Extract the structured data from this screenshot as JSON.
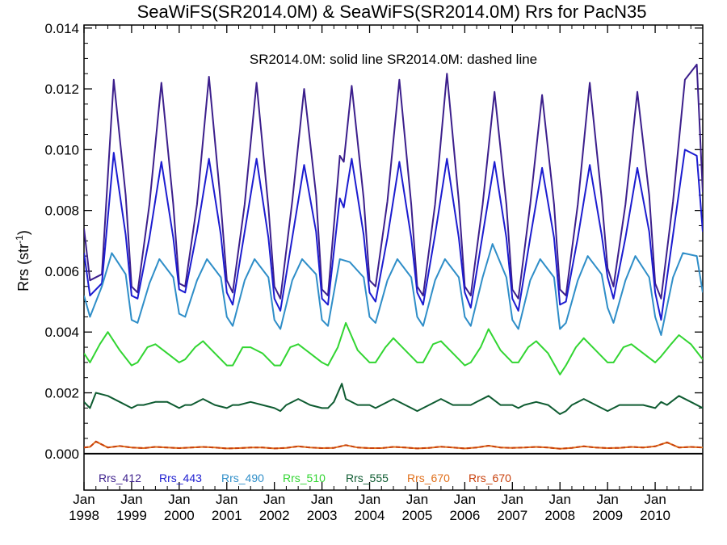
{
  "chart_data": {
    "type": "line",
    "title": "SeaWiFS(SR2014.0M) & SeaWiFS(SR2014.0M)  Rrs for PacN35",
    "note": "SR2014.0M: solid line   SR2014.0M: dashed line",
    "ylabel_main": "Rrs (str",
    "ylabel_sup": "-1",
    "ylabel_end": ")",
    "xlabel": "",
    "ylim": [
      -0.0012,
      0.0141
    ],
    "xlim": [
      1998.0,
      2011.0
    ],
    "y_ticks": [
      {
        "value": 0.0,
        "label": "0.000"
      },
      {
        "value": 0.002,
        "label": "0.002"
      },
      {
        "value": 0.004,
        "label": "0.004"
      },
      {
        "value": 0.006,
        "label": "0.006"
      },
      {
        "value": 0.008,
        "label": "0.008"
      },
      {
        "value": 0.01,
        "label": "0.010"
      },
      {
        "value": 0.012,
        "label": "0.012"
      },
      {
        "value": 0.014,
        "label": "0.014"
      }
    ],
    "x_ticks": [
      {
        "value": 1998,
        "month": "Jan",
        "year": "1998"
      },
      {
        "value": 1999,
        "month": "Jan",
        "year": "1999"
      },
      {
        "value": 2000,
        "month": "Jan",
        "year": "2000"
      },
      {
        "value": 2001,
        "month": "Jan",
        "year": "2001"
      },
      {
        "value": 2002,
        "month": "Jan",
        "year": "2002"
      },
      {
        "value": 2003,
        "month": "Jan",
        "year": "2003"
      },
      {
        "value": 2004,
        "month": "Jan",
        "year": "2004"
      },
      {
        "value": 2005,
        "month": "Jan",
        "year": "2005"
      },
      {
        "value": 2006,
        "month": "Jan",
        "year": "2006"
      },
      {
        "value": 2007,
        "month": "Jan",
        "year": "2007"
      },
      {
        "value": 2008,
        "month": "Jan",
        "year": "2008"
      },
      {
        "value": 2009,
        "month": "Jan",
        "year": "2009"
      },
      {
        "value": 2010,
        "month": "Jan",
        "year": "2010"
      }
    ],
    "grid": false,
    "legend_position": "bottom-left",
    "zero_line": true,
    "series": [
      {
        "name": "Rrs_412",
        "color": "#3c1f8c",
        "style": "solid",
        "x": [
          1998.0,
          1998.125,
          1998.375,
          1998.625,
          1998.875,
          1999.0,
          1999.125,
          1999.375,
          1999.625,
          1999.875,
          2000.0,
          2000.125,
          2000.375,
          2000.625,
          2000.875,
          2001.0,
          2001.125,
          2001.375,
          2001.625,
          2001.875,
          2002.0,
          2002.125,
          2002.375,
          2002.625,
          2002.875,
          2003.0,
          2003.125,
          2003.375,
          2003.458,
          2003.625,
          2003.875,
          2004.0,
          2004.125,
          2004.375,
          2004.625,
          2004.875,
          2005.0,
          2005.125,
          2005.375,
          2005.625,
          2005.875,
          2006.0,
          2006.125,
          2006.375,
          2006.625,
          2006.875,
          2007.0,
          2007.125,
          2007.375,
          2007.625,
          2007.875,
          2008.0,
          2008.125,
          2008.375,
          2008.625,
          2008.875,
          2009.0,
          2009.125,
          2009.375,
          2009.625,
          2009.875,
          2010.0,
          2010.125,
          2010.375,
          2010.625,
          2010.875,
          2011.0
        ],
        "y": [
          0.0074,
          0.0057,
          0.0059,
          0.0123,
          0.0085,
          0.0055,
          0.0053,
          0.0082,
          0.0122,
          0.0082,
          0.0056,
          0.0055,
          0.0082,
          0.0124,
          0.0082,
          0.0057,
          0.0053,
          0.0082,
          0.0122,
          0.0081,
          0.0055,
          0.0051,
          0.0083,
          0.012,
          0.0085,
          0.0054,
          0.0052,
          0.0098,
          0.0096,
          0.0121,
          0.0084,
          0.0057,
          0.0055,
          0.0083,
          0.0123,
          0.0082,
          0.0055,
          0.0052,
          0.0082,
          0.0125,
          0.0083,
          0.0055,
          0.0052,
          0.0082,
          0.0119,
          0.0082,
          0.0054,
          0.0051,
          0.0082,
          0.0118,
          0.0082,
          0.0054,
          0.0052,
          0.0082,
          0.0122,
          0.0084,
          0.0061,
          0.0055,
          0.0082,
          0.0119,
          0.0085,
          0.0056,
          0.0051,
          0.0083,
          0.0123,
          0.0128,
          0.0086
        ]
      },
      {
        "name": "Rrs_443",
        "color": "#1c1cd0",
        "style": "solid",
        "x": [
          1998.0,
          1998.125,
          1998.375,
          1998.625,
          1998.875,
          1999.0,
          1999.125,
          1999.375,
          1999.625,
          1999.875,
          2000.0,
          2000.125,
          2000.375,
          2000.625,
          2000.875,
          2001.0,
          2001.125,
          2001.375,
          2001.625,
          2001.875,
          2002.0,
          2002.125,
          2002.375,
          2002.625,
          2002.875,
          2003.0,
          2003.125,
          2003.375,
          2003.458,
          2003.625,
          2003.875,
          2004.0,
          2004.125,
          2004.375,
          2004.625,
          2004.875,
          2005.0,
          2005.125,
          2005.375,
          2005.625,
          2005.875,
          2006.0,
          2006.125,
          2006.375,
          2006.625,
          2006.875,
          2007.0,
          2007.125,
          2007.375,
          2007.625,
          2007.875,
          2008.0,
          2008.125,
          2008.375,
          2008.625,
          2008.875,
          2009.0,
          2009.125,
          2009.375,
          2009.625,
          2009.875,
          2010.0,
          2010.125,
          2010.375,
          2010.625,
          2010.875,
          2011.0
        ],
        "y": [
          0.0066,
          0.0052,
          0.0056,
          0.0099,
          0.0072,
          0.0052,
          0.0051,
          0.0071,
          0.0096,
          0.0071,
          0.0054,
          0.0053,
          0.0073,
          0.0097,
          0.0072,
          0.0053,
          0.0049,
          0.0073,
          0.0097,
          0.0071,
          0.0051,
          0.0047,
          0.0071,
          0.0095,
          0.0073,
          0.0051,
          0.0049,
          0.0084,
          0.0081,
          0.0097,
          0.0072,
          0.0053,
          0.005,
          0.0071,
          0.0096,
          0.0071,
          0.0053,
          0.0049,
          0.0072,
          0.0097,
          0.0071,
          0.0053,
          0.0048,
          0.0072,
          0.0096,
          0.0071,
          0.0051,
          0.0047,
          0.0071,
          0.0094,
          0.0071,
          0.0049,
          0.005,
          0.0071,
          0.0095,
          0.0072,
          0.0058,
          0.0051,
          0.0071,
          0.0094,
          0.0073,
          0.0053,
          0.0044,
          0.0072,
          0.01,
          0.0098,
          0.0073
        ]
      },
      {
        "name": "Rrs_490",
        "color": "#2f8ec8",
        "style": "solid",
        "x": [
          1998.0,
          1998.125,
          1998.375,
          1998.583,
          1998.875,
          1999.0,
          1999.125,
          1999.375,
          1999.583,
          1999.875,
          2000.0,
          2000.125,
          2000.375,
          2000.583,
          2000.875,
          2001.0,
          2001.125,
          2001.375,
          2001.583,
          2001.875,
          2002.0,
          2002.125,
          2002.375,
          2002.583,
          2002.875,
          2003.0,
          2003.125,
          2003.375,
          2003.583,
          2003.875,
          2004.0,
          2004.125,
          2004.375,
          2004.583,
          2004.875,
          2005.0,
          2005.125,
          2005.375,
          2005.583,
          2005.875,
          2006.0,
          2006.125,
          2006.375,
          2006.583,
          2006.875,
          2007.0,
          2007.125,
          2007.375,
          2007.583,
          2007.875,
          2008.0,
          2008.125,
          2008.375,
          2008.583,
          2008.875,
          2009.0,
          2009.125,
          2009.375,
          2009.583,
          2009.875,
          2010.0,
          2010.125,
          2010.375,
          2010.583,
          2010.875,
          2011.0
        ],
        "y": [
          0.0052,
          0.0045,
          0.0055,
          0.0066,
          0.0059,
          0.0044,
          0.0043,
          0.0056,
          0.0064,
          0.0058,
          0.0046,
          0.0045,
          0.0057,
          0.0064,
          0.0058,
          0.0045,
          0.0042,
          0.0057,
          0.0064,
          0.0058,
          0.0044,
          0.0041,
          0.0057,
          0.0064,
          0.0059,
          0.0044,
          0.0042,
          0.0064,
          0.0063,
          0.0058,
          0.0045,
          0.0043,
          0.0057,
          0.0064,
          0.0058,
          0.0045,
          0.0042,
          0.0057,
          0.0064,
          0.0058,
          0.0045,
          0.0042,
          0.0058,
          0.0069,
          0.0058,
          0.0044,
          0.0041,
          0.0057,
          0.0064,
          0.0058,
          0.0041,
          0.0043,
          0.0057,
          0.0065,
          0.0059,
          0.0048,
          0.0043,
          0.0057,
          0.0065,
          0.0058,
          0.0045,
          0.0039,
          0.0058,
          0.0066,
          0.0065,
          0.0053
        ]
      },
      {
        "name": "Rrs_510",
        "color": "#32d532",
        "style": "solid",
        "x": [
          1998.0,
          1998.125,
          1998.333,
          1998.5,
          1998.75,
          1999.0,
          1999.125,
          1999.333,
          1999.5,
          1999.75,
          2000.0,
          2000.125,
          2000.333,
          2000.5,
          2000.75,
          2001.0,
          2001.125,
          2001.333,
          2001.5,
          2001.75,
          2002.0,
          2002.125,
          2002.333,
          2002.5,
          2002.75,
          2003.0,
          2003.125,
          2003.333,
          2003.5,
          2003.75,
          2004.0,
          2004.125,
          2004.333,
          2004.5,
          2004.75,
          2005.0,
          2005.125,
          2005.333,
          2005.5,
          2005.75,
          2006.0,
          2006.125,
          2006.333,
          2006.5,
          2006.75,
          2007.0,
          2007.125,
          2007.333,
          2007.5,
          2007.75,
          2008.0,
          2008.125,
          2008.333,
          2008.5,
          2008.75,
          2009.0,
          2009.125,
          2009.333,
          2009.5,
          2009.75,
          2010.0,
          2010.125,
          2010.333,
          2010.5,
          2010.75,
          2011.0
        ],
        "y": [
          0.0033,
          0.003,
          0.0036,
          0.004,
          0.0034,
          0.0029,
          0.003,
          0.0035,
          0.0036,
          0.0033,
          0.003,
          0.0031,
          0.0035,
          0.0037,
          0.0033,
          0.0029,
          0.0029,
          0.0035,
          0.0035,
          0.0033,
          0.0029,
          0.0029,
          0.0035,
          0.0036,
          0.0033,
          0.003,
          0.0029,
          0.0035,
          0.0043,
          0.0034,
          0.003,
          0.003,
          0.0035,
          0.0038,
          0.0034,
          0.003,
          0.003,
          0.0036,
          0.0037,
          0.0033,
          0.0029,
          0.003,
          0.0035,
          0.0041,
          0.0034,
          0.003,
          0.003,
          0.0035,
          0.0037,
          0.0033,
          0.0026,
          0.0029,
          0.0035,
          0.0038,
          0.0034,
          0.003,
          0.003,
          0.0035,
          0.0036,
          0.0033,
          0.003,
          0.0032,
          0.0036,
          0.0039,
          0.0036,
          0.0031
        ]
      },
      {
        "name": "Rrs_555",
        "color": "#0f5c32",
        "style": "solid",
        "x": [
          1998.0,
          1998.125,
          1998.25,
          1998.5,
          1998.75,
          1999.0,
          1999.125,
          1999.25,
          1999.5,
          1999.75,
          2000.0,
          2000.125,
          2000.25,
          2000.5,
          2000.75,
          2001.0,
          2001.125,
          2001.25,
          2001.5,
          2001.75,
          2002.0,
          2002.125,
          2002.25,
          2002.5,
          2002.75,
          2003.0,
          2003.125,
          2003.25,
          2003.417,
          2003.5,
          2003.75,
          2004.0,
          2004.125,
          2004.25,
          2004.5,
          2004.75,
          2005.0,
          2005.125,
          2005.25,
          2005.5,
          2005.75,
          2006.0,
          2006.125,
          2006.25,
          2006.5,
          2006.75,
          2007.0,
          2007.125,
          2007.25,
          2007.5,
          2007.75,
          2008.0,
          2008.125,
          2008.25,
          2008.5,
          2008.75,
          2009.0,
          2009.125,
          2009.25,
          2009.5,
          2009.75,
          2010.0,
          2010.125,
          2010.25,
          2010.5,
          2010.75,
          2011.0
        ],
        "y": [
          0.0017,
          0.0015,
          0.002,
          0.0019,
          0.0017,
          0.0015,
          0.0016,
          0.0016,
          0.0017,
          0.0017,
          0.0015,
          0.0016,
          0.0016,
          0.0018,
          0.0016,
          0.0015,
          0.0016,
          0.0016,
          0.0017,
          0.0016,
          0.0015,
          0.0014,
          0.0016,
          0.0018,
          0.0016,
          0.0015,
          0.0015,
          0.0017,
          0.0023,
          0.0018,
          0.0016,
          0.0016,
          0.0015,
          0.0016,
          0.0018,
          0.0016,
          0.0014,
          0.0015,
          0.0016,
          0.0018,
          0.0016,
          0.0016,
          0.0016,
          0.0017,
          0.0019,
          0.0016,
          0.0016,
          0.0015,
          0.0016,
          0.0017,
          0.0016,
          0.0013,
          0.0014,
          0.0016,
          0.0018,
          0.0016,
          0.0014,
          0.0015,
          0.0016,
          0.0016,
          0.0016,
          0.0015,
          0.0017,
          0.0016,
          0.0019,
          0.0017,
          0.0015
        ]
      },
      {
        "name": "Rrs_670",
        "color": "#e0701c",
        "style": "solid",
        "x": [
          1998.0,
          1998.125,
          1998.25,
          1998.5,
          1998.75,
          1999.0,
          1999.25,
          1999.5,
          1999.75,
          2000.0,
          2000.25,
          2000.5,
          2000.75,
          2001.0,
          2001.25,
          2001.5,
          2001.75,
          2002.0,
          2002.25,
          2002.5,
          2002.75,
          2003.0,
          2003.25,
          2003.5,
          2003.75,
          2004.0,
          2004.25,
          2004.5,
          2004.75,
          2005.0,
          2005.25,
          2005.5,
          2005.75,
          2006.0,
          2006.25,
          2006.5,
          2006.75,
          2007.0,
          2007.25,
          2007.5,
          2007.75,
          2008.0,
          2008.25,
          2008.5,
          2008.75,
          2009.0,
          2009.25,
          2009.5,
          2009.75,
          2010.0,
          2010.25,
          2010.5,
          2010.75,
          2011.0
        ],
        "y": [
          0.0002,
          0.00022,
          0.0004,
          0.0002,
          0.00025,
          0.0002,
          0.00018,
          0.00022,
          0.0002,
          0.00018,
          0.0002,
          0.00022,
          0.0002,
          0.00017,
          0.00018,
          0.0002,
          0.0002,
          0.00017,
          0.00019,
          0.00024,
          0.0002,
          0.00018,
          0.00019,
          0.00028,
          0.0002,
          0.00018,
          0.00018,
          0.00022,
          0.0002,
          0.00017,
          0.00019,
          0.00023,
          0.0002,
          0.00017,
          0.0002,
          0.00026,
          0.0002,
          0.00019,
          0.0002,
          0.00022,
          0.0002,
          0.00016,
          0.00019,
          0.00024,
          0.0002,
          0.00018,
          0.00019,
          0.00022,
          0.0002,
          0.00024,
          0.00037,
          0.0002,
          0.00022,
          0.0002
        ]
      },
      {
        "name": "Rrs_670",
        "color": "#c8400c",
        "style": "dashed",
        "x": [
          1998.0,
          1998.125,
          1998.25,
          1998.5,
          1998.75,
          1999.0,
          1999.25,
          1999.5,
          1999.75,
          2000.0,
          2000.25,
          2000.5,
          2000.75,
          2001.0,
          2001.25,
          2001.5,
          2001.75,
          2002.0,
          2002.25,
          2002.5,
          2002.75,
          2003.0,
          2003.25,
          2003.5,
          2003.75,
          2004.0,
          2004.25,
          2004.5,
          2004.75,
          2005.0,
          2005.25,
          2005.5,
          2005.75,
          2006.0,
          2006.25,
          2006.5,
          2006.75,
          2007.0,
          2007.25,
          2007.5,
          2007.75,
          2008.0,
          2008.25,
          2008.5,
          2008.75,
          2009.0,
          2009.25,
          2009.5,
          2009.75,
          2010.0,
          2010.25,
          2010.5,
          2010.75,
          2011.0
        ],
        "y": [
          0.0002,
          0.00022,
          0.0004,
          0.0002,
          0.00025,
          0.0002,
          0.00018,
          0.00022,
          0.0002,
          0.00018,
          0.0002,
          0.00022,
          0.0002,
          0.00017,
          0.00018,
          0.0002,
          0.0002,
          0.00017,
          0.00019,
          0.00024,
          0.0002,
          0.00018,
          0.00019,
          0.00028,
          0.0002,
          0.00018,
          0.00018,
          0.00022,
          0.0002,
          0.00017,
          0.00019,
          0.00023,
          0.0002,
          0.00017,
          0.0002,
          0.00026,
          0.0002,
          0.00019,
          0.0002,
          0.00022,
          0.0002,
          0.00016,
          0.00019,
          0.00024,
          0.0002,
          0.00018,
          0.00019,
          0.00022,
          0.0002,
          0.00024,
          0.00037,
          0.0002,
          0.00022,
          0.0002
        ]
      }
    ]
  }
}
